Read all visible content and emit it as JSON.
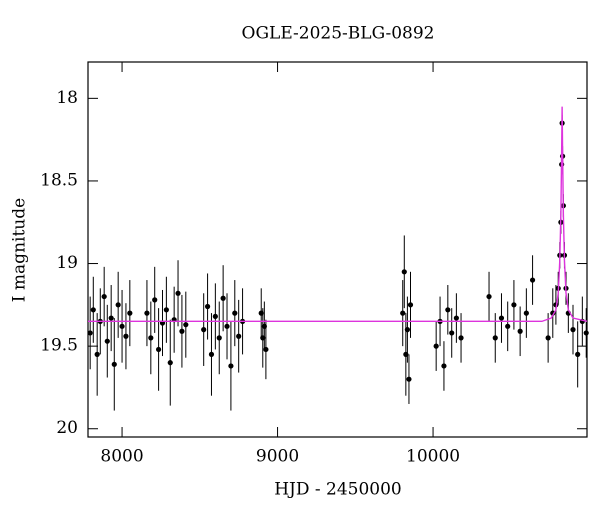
{
  "chart_data": {
    "type": "scatter",
    "title": "OGLE-2025-BLG-0892",
    "xlabel": "HJD - 2450000",
    "ylabel": "I magnitude",
    "xlim": [
      7781,
      10990
    ],
    "ylim": [
      20.05,
      17.78
    ],
    "xticks": [
      8000,
      9000,
      10000
    ],
    "yticks": [
      18,
      18.5,
      19,
      19.5,
      20
    ],
    "y_inverted": true,
    "series": [
      {
        "type": "scatter",
        "color": "#000000",
        "x": [
          7795,
          7815,
          7840,
          7860,
          7885,
          7905,
          7930,
          7950,
          7975,
          8000,
          8025,
          8050,
          8160,
          8185,
          8210,
          8235,
          8260,
          8285,
          8310,
          8335,
          8360,
          8385,
          8410,
          8525,
          8550,
          8575,
          8600,
          8625,
          8650,
          8675,
          8700,
          8725,
          8750,
          8775,
          8895,
          8905,
          8915,
          8925,
          9805,
          9815,
          9825,
          9835,
          9845,
          9855,
          10020,
          10045,
          10070,
          10095,
          10120,
          10150,
          10180,
          10360,
          10400,
          10440,
          10480,
          10520,
          10560,
          10600,
          10640,
          10740,
          10770,
          10790,
          10805,
          10815,
          10822,
          10827,
          10830,
          10833,
          10838,
          10845,
          10855,
          10870,
          10900,
          10930,
          10960,
          10985
        ],
        "y": [
          19.42,
          19.28,
          19.55,
          19.35,
          19.2,
          19.47,
          19.33,
          19.61,
          19.25,
          19.38,
          19.44,
          19.3,
          19.3,
          19.45,
          19.22,
          19.52,
          19.36,
          19.28,
          19.6,
          19.34,
          19.18,
          19.41,
          19.37,
          19.4,
          19.26,
          19.55,
          19.32,
          19.45,
          19.21,
          19.38,
          19.62,
          19.3,
          19.44,
          19.35,
          19.3,
          19.45,
          19.38,
          19.52,
          19.3,
          19.05,
          19.55,
          19.4,
          19.7,
          19.25,
          19.5,
          19.35,
          19.62,
          19.28,
          19.42,
          19.33,
          19.45,
          19.2,
          19.45,
          19.33,
          19.38,
          19.25,
          19.41,
          19.3,
          19.1,
          19.45,
          19.3,
          19.25,
          19.15,
          18.95,
          18.75,
          18.4,
          18.15,
          18.35,
          18.65,
          18.95,
          19.15,
          19.3,
          19.4,
          19.55,
          19.35,
          19.42
        ],
        "yerr": [
          0.22,
          0.2,
          0.25,
          0.2,
          0.18,
          0.22,
          0.2,
          0.28,
          0.2,
          0.22,
          0.2,
          0.2,
          0.2,
          0.22,
          0.2,
          0.25,
          0.2,
          0.2,
          0.26,
          0.2,
          0.2,
          0.22,
          0.2,
          0.22,
          0.2,
          0.25,
          0.2,
          0.22,
          0.2,
          0.2,
          0.27,
          0.2,
          0.22,
          0.2,
          0.15,
          0.18,
          0.15,
          0.18,
          0.2,
          0.22,
          0.25,
          0.2,
          0.15,
          0.2,
          0.15,
          0.15,
          0.15,
          0.15,
          0.15,
          0.15,
          0.15,
          0.15,
          0.15,
          0.15,
          0.15,
          0.15,
          0.15,
          0.15,
          0.15,
          0.15,
          0.15,
          0.12,
          0.1,
          0.08,
          0.07,
          0.06,
          0.05,
          0.06,
          0.07,
          0.08,
          0.1,
          0.12,
          0.15,
          0.2,
          0.15,
          0.15
        ]
      },
      {
        "type": "line",
        "color": "#dd33dd",
        "x": [
          7781,
          10700,
          10760,
          10790,
          10805,
          10815,
          10822,
          10827,
          10830,
          10833,
          10838,
          10845,
          10855,
          10870,
          10900,
          10990
        ],
        "y": [
          19.35,
          19.35,
          19.33,
          19.28,
          19.18,
          18.98,
          18.7,
          18.32,
          18.05,
          18.32,
          18.7,
          18.98,
          19.18,
          19.28,
          19.33,
          19.35
        ]
      }
    ]
  }
}
